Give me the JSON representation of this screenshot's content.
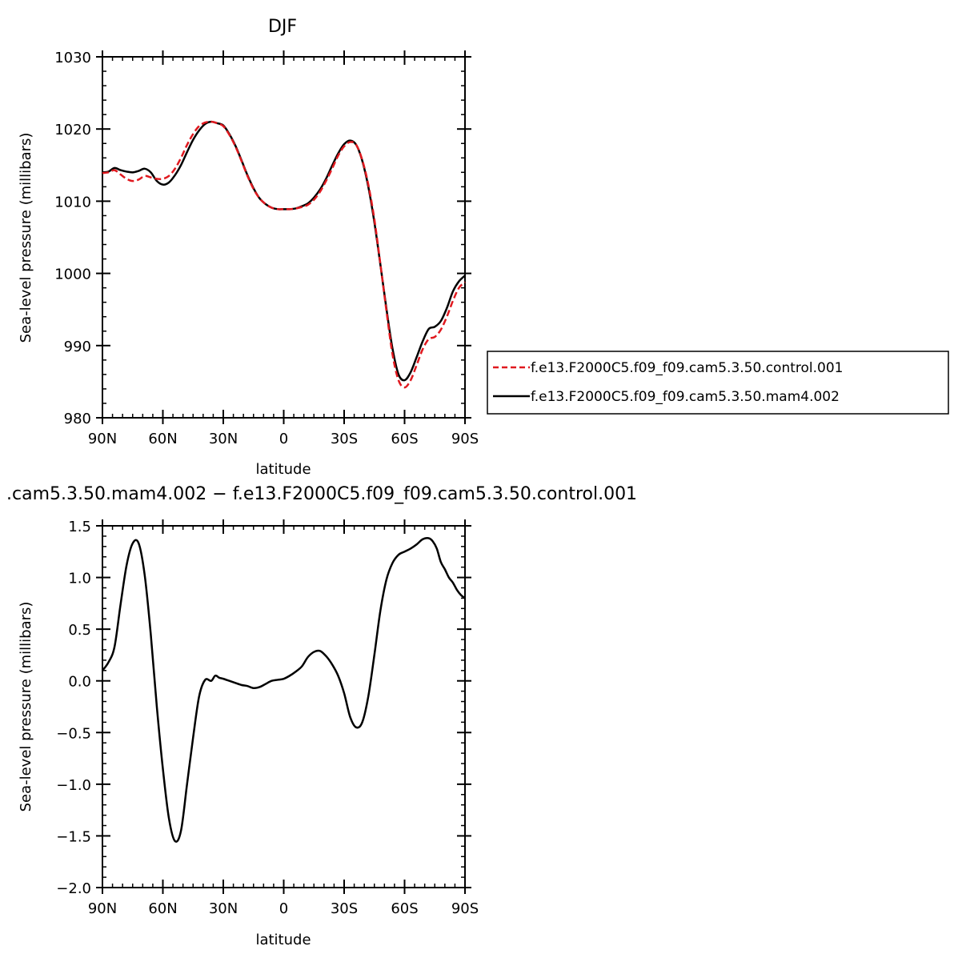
{
  "chart_data": [
    {
      "type": "line",
      "title": "DJF",
      "xlabel": "latitude",
      "ylabel": "Sea-level pressure (millibars)",
      "xlim": [
        90,
        -90
      ],
      "ylim": [
        980,
        1030
      ],
      "x_ticks": [
        90,
        60,
        30,
        0,
        -30,
        -60,
        -90
      ],
      "x_tick_labels": [
        "90N",
        "60N",
        "30N",
        "0",
        "30S",
        "60S",
        "90S"
      ],
      "y_ticks": [
        980,
        990,
        1000,
        1010,
        1020,
        1030
      ],
      "y_tick_labels": [
        "980",
        "990",
        "1000",
        "1010",
        "1020",
        "1030"
      ],
      "grid": false,
      "legend": "right",
      "series": [
        {
          "name": "f.e13.F2000C5.f09_f09.cam5.3.50.control.001",
          "color": "#e0191f",
          "dash": "dashed",
          "x": [
            90,
            87,
            84,
            81,
            78,
            75,
            72,
            69,
            66,
            63,
            60,
            57,
            54,
            51,
            48,
            45,
            42,
            39,
            36,
            33,
            30,
            27,
            24,
            21,
            18,
            15,
            12,
            9,
            6,
            3,
            0,
            -3,
            -6,
            -9,
            -12,
            -15,
            -18,
            -21,
            -24,
            -27,
            -30,
            -33,
            -36,
            -39,
            -42,
            -45,
            -48,
            -51,
            -54,
            -57,
            -60,
            -63,
            -66,
            -69,
            -72,
            -75,
            -78,
            -81,
            -84,
            -87,
            -90
          ],
          "y": [
            1013.9,
            1014.0,
            1014.3,
            1013.7,
            1013.1,
            1012.8,
            1013.0,
            1013.5,
            1013.3,
            1013.1,
            1013.1,
            1013.5,
            1014.5,
            1016.0,
            1017.8,
            1019.3,
            1020.4,
            1020.9,
            1021.0,
            1020.8,
            1020.4,
            1019.2,
            1017.6,
            1015.6,
            1013.5,
            1011.7,
            1010.4,
            1009.6,
            1009.1,
            1008.9,
            1008.9,
            1008.9,
            1009.0,
            1009.2,
            1009.5,
            1010.2,
            1011.3,
            1012.8,
            1014.5,
            1016.3,
            1017.6,
            1018.2,
            1017.8,
            1015.7,
            1012.3,
            1007.5,
            1001.3,
            994.8,
            988.8,
            985.2,
            984.2,
            985.2,
            987.3,
            989.5,
            990.9,
            991.2,
            992.2,
            994.0,
            996.2,
            998.0,
            998.8
          ]
        },
        {
          "name": "f.e13.F2000C5.f09_f09.cam5.3.50.mam4.002",
          "color": "#000000",
          "dash": "solid",
          "x": [
            90,
            87,
            84,
            81,
            78,
            75,
            72,
            69,
            66,
            63,
            60,
            57,
            54,
            51,
            48,
            45,
            42,
            39,
            36,
            33,
            30,
            27,
            24,
            21,
            18,
            15,
            12,
            9,
            6,
            3,
            0,
            -3,
            -6,
            -9,
            -12,
            -15,
            -18,
            -21,
            -24,
            -27,
            -30,
            -33,
            -36,
            -39,
            -42,
            -45,
            -48,
            -51,
            -54,
            -57,
            -60,
            -63,
            -66,
            -69,
            -72,
            -75,
            -78,
            -81,
            -84,
            -87,
            -90
          ],
          "y": [
            1014.0,
            1014.1,
            1014.6,
            1014.3,
            1014.1,
            1014.0,
            1014.2,
            1014.5,
            1014.0,
            1012.8,
            1012.3,
            1012.6,
            1013.6,
            1015.0,
            1016.8,
            1018.5,
            1019.8,
            1020.7,
            1021.0,
            1020.8,
            1020.5,
            1019.3,
            1017.7,
            1015.7,
            1013.6,
            1011.8,
            1010.4,
            1009.6,
            1009.1,
            1008.9,
            1008.9,
            1008.9,
            1009.0,
            1009.3,
            1009.7,
            1010.5,
            1011.6,
            1013.1,
            1014.9,
            1016.6,
            1017.9,
            1018.4,
            1017.8,
            1015.6,
            1012.0,
            1007.1,
            1001.2,
            995.1,
            989.6,
            986.0,
            985.2,
            986.3,
            988.4,
            990.6,
            992.3,
            992.6,
            993.4,
            995.2,
            997.5,
            998.9,
            999.7
          ]
        }
      ]
    },
    {
      "type": "line",
      "title": ".cam5.3.50.mam4.002  −  f.e13.F2000C5.f09_f09.cam5.3.50.control.001",
      "xlabel": "latitude",
      "ylabel": "Sea-level pressure (millibars)",
      "xlim": [
        90,
        -90
      ],
      "ylim": [
        -2.0,
        1.5
      ],
      "x_ticks": [
        90,
        60,
        30,
        0,
        -30,
        -60,
        -90
      ],
      "x_tick_labels": [
        "90N",
        "60N",
        "30N",
        "0",
        "30S",
        "60S",
        "90S"
      ],
      "y_ticks": [
        -2.0,
        -1.5,
        -1.0,
        -0.5,
        0.0,
        0.5,
        1.0,
        1.5
      ],
      "y_tick_labels": [
        "−2.0",
        "−1.5",
        "−1.0",
        "−0.5",
        "0.0",
        "0.5",
        "1.0",
        "1.5"
      ],
      "grid": false,
      "series": [
        {
          "color": "#000000",
          "dash": "solid",
          "x": [
            90,
            87,
            84,
            81,
            78,
            75,
            72,
            69,
            66,
            63,
            60,
            57,
            54,
            51,
            48,
            45,
            42,
            39,
            36,
            34,
            32,
            30,
            27,
            24,
            21,
            18,
            15,
            12,
            9,
            6,
            3,
            0,
            -3,
            -6,
            -9,
            -12,
            -15,
            -18,
            -21,
            -24,
            -27,
            -30,
            -33,
            -36,
            -39,
            -42,
            -45,
            -48,
            -51,
            -54,
            -57,
            -60,
            -63,
            -66,
            -69,
            -72,
            -74,
            -76,
            -78,
            -80,
            -82,
            -84,
            -86,
            -88,
            -90
          ],
          "y": [
            0.1,
            0.18,
            0.33,
            0.74,
            1.12,
            1.33,
            1.33,
            1.02,
            0.45,
            -0.25,
            -0.85,
            -1.33,
            -1.55,
            -1.45,
            -1.0,
            -0.55,
            -0.15,
            0.01,
            0.0,
            0.05,
            0.03,
            0.02,
            0.0,
            -0.02,
            -0.04,
            -0.05,
            -0.07,
            -0.06,
            -0.03,
            0.0,
            0.01,
            0.02,
            0.05,
            0.09,
            0.14,
            0.23,
            0.28,
            0.29,
            0.24,
            0.16,
            0.05,
            -0.12,
            -0.35,
            -0.45,
            -0.4,
            -0.15,
            0.25,
            0.68,
            0.98,
            1.14,
            1.22,
            1.25,
            1.28,
            1.32,
            1.37,
            1.38,
            1.35,
            1.28,
            1.15,
            1.08,
            1.0,
            0.95,
            0.88,
            0.83,
            0.8
          ]
        }
      ]
    }
  ]
}
